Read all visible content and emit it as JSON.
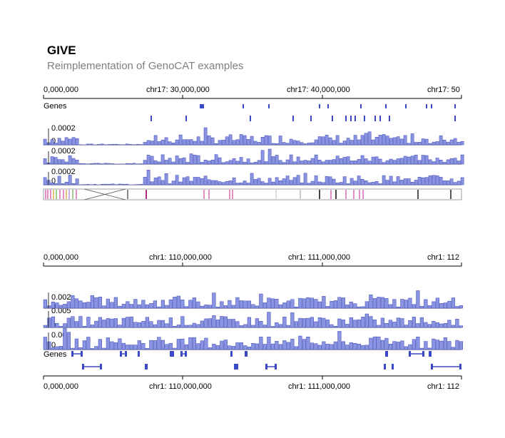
{
  "header": {
    "title": "GIVE",
    "subtitle": "Reimplementation of GenoCAT examples"
  },
  "colors": {
    "bar_fill": "#8a94e0",
    "bar_stroke": "#3a46b8",
    "gene": "#3b48c8",
    "axis": "#000000",
    "pink": "#e48ec8",
    "gray_line": "#666666"
  },
  "panel1": {
    "axis_ticks": [
      "0,000,000",
      "chr17: 30,000,000",
      "chr17: 40,000,000",
      "chr17: 50"
    ],
    "genes_label": "Genes",
    "track_labels": [
      {
        "top": "0.0002",
        "bottom": "0"
      },
      {
        "top": "0.0002",
        "bottom": "0"
      },
      {
        "top": "0.0002",
        "bottom": "0"
      }
    ]
  },
  "panel2": {
    "axis_top_ticks": [
      "0,000,000",
      "chr1: 110,000,000",
      "chr1: 111,000,000",
      "chr1: 112"
    ],
    "axis_bottom_ticks": [
      "0,000,000",
      "chr1: 110,000,000",
      "chr1: 111,000,000",
      "chr1: 112"
    ],
    "genes_label": "Genes",
    "track_labels": [
      {
        "top": "0.002",
        "bottom": "0"
      },
      {
        "top": "0.005",
        "bottom": "0"
      },
      {
        "top": "0.002",
        "bottom": "0"
      }
    ]
  }
}
